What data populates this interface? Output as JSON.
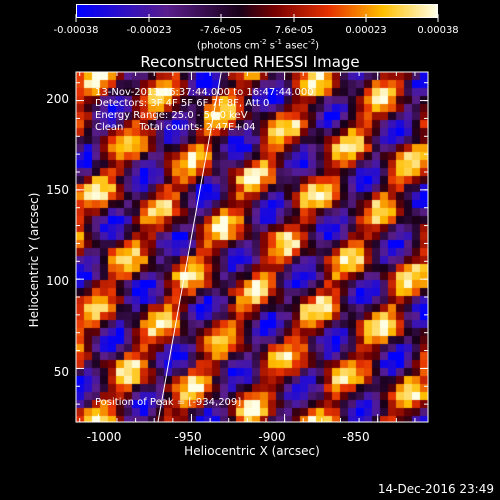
{
  "colorbar": {
    "tick_labels": [
      "-0.00038",
      "-0.00023",
      "-7.6e-05",
      "7.6e-05",
      "0.00023",
      "0.00038"
    ],
    "units_prefix": "(photons cm",
    "units_exp1": "-2",
    "units_mid": " s",
    "units_exp2": "-1",
    "units_mid2": " asec",
    "units_exp3": "-2",
    "units_suffix": ")"
  },
  "title": "Reconstructed RHESSI Image",
  "annotations": {
    "time_range": "13-Nov-2013 16:37:44.000 to 16:47:44.000",
    "detectors": "Detectors: 3F 4F 5F 6F 7F 8F, Att 0",
    "energy": "Energy Range: 25.0 - 50.0 keV",
    "clean": "Clean     Total counts: 2.47E+04",
    "peak": "Position of Peak = [-934,209]"
  },
  "axes": {
    "xlabel": "Heliocentric X (arcsec)",
    "ylabel": "Heliocentric Y (arcsec)",
    "xticks": [
      "-1000",
      "-950",
      "-900",
      "-850"
    ],
    "xtick_values": [
      -1000,
      -950,
      -900,
      -850
    ],
    "yticks": [
      "50",
      "100",
      "150",
      "200"
    ],
    "ytick_values": [
      50,
      100,
      150,
      200
    ],
    "xlim": [
      -1012,
      -823
    ],
    "ylim": [
      20,
      216
    ]
  },
  "footer": "14-Dec-2016 23:49",
  "colors": {
    "background": "#000000",
    "limb_line": "#ffffff"
  },
  "chart_data": {
    "type": "heatmap",
    "colormap": "blue-purple-red-yellow-white",
    "value_range": [
      -0.00038,
      0.00038
    ],
    "title": "Reconstructed RHESSI Image",
    "xlabel": "Heliocentric X (arcsec)",
    "ylabel": "Heliocentric Y (arcsec)",
    "xlim": [
      -1012,
      -823
    ],
    "ylim": [
      20,
      216
    ],
    "limb_line": [
      [
        -968,
        20
      ],
      [
        -934,
        216
      ]
    ],
    "peak_position": [
      -934,
      209
    ]
  }
}
